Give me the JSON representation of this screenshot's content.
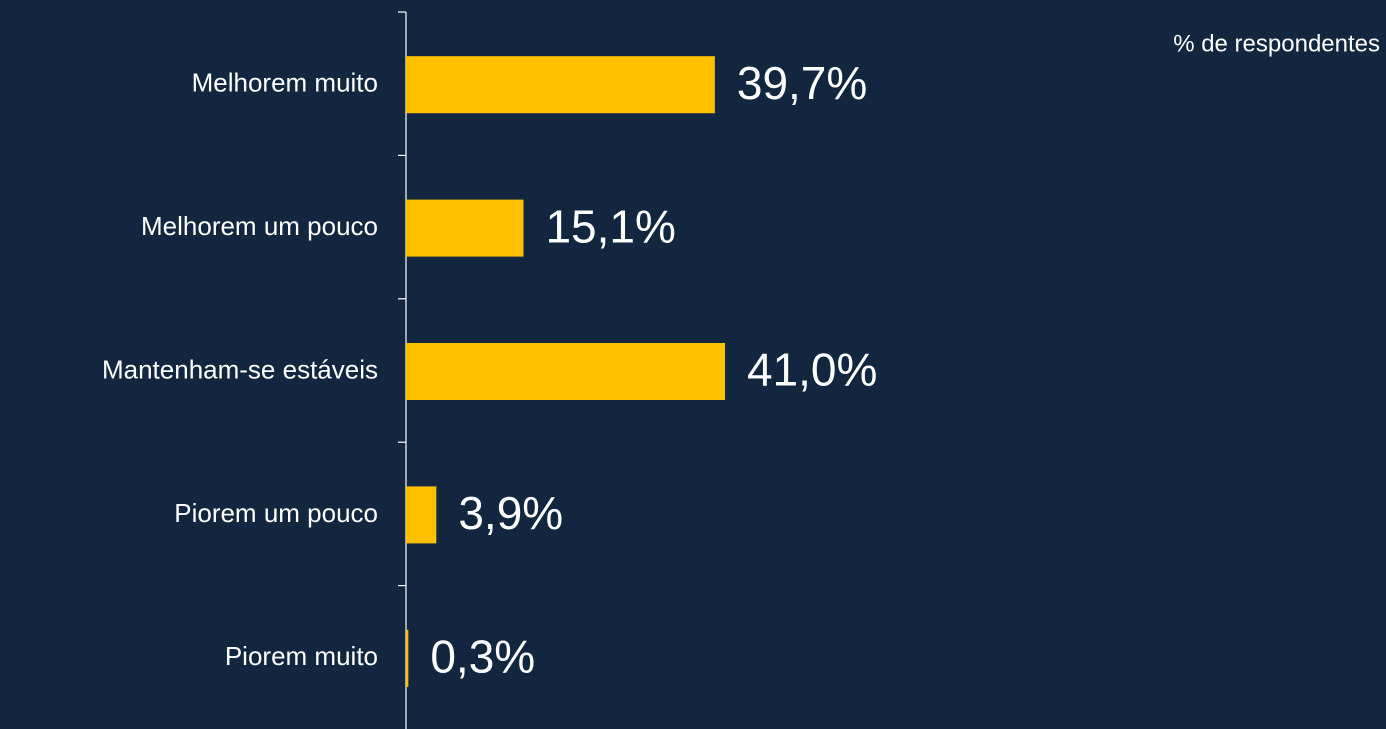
{
  "chart_data": {
    "type": "barh",
    "subtitle": "% de respondentes",
    "categories": [
      "Melhorem muito",
      "Melhorem um pouco",
      "Mantenham-se estáveis",
      "Piorem um pouco",
      "Piorem muito"
    ],
    "values": [
      39.7,
      15.1,
      41.0,
      3.9,
      0.3
    ],
    "value_labels": [
      "39,7%",
      "15,1%",
      "41,0%",
      "3,9%",
      "0,3%"
    ],
    "color": "#ffc000"
  }
}
